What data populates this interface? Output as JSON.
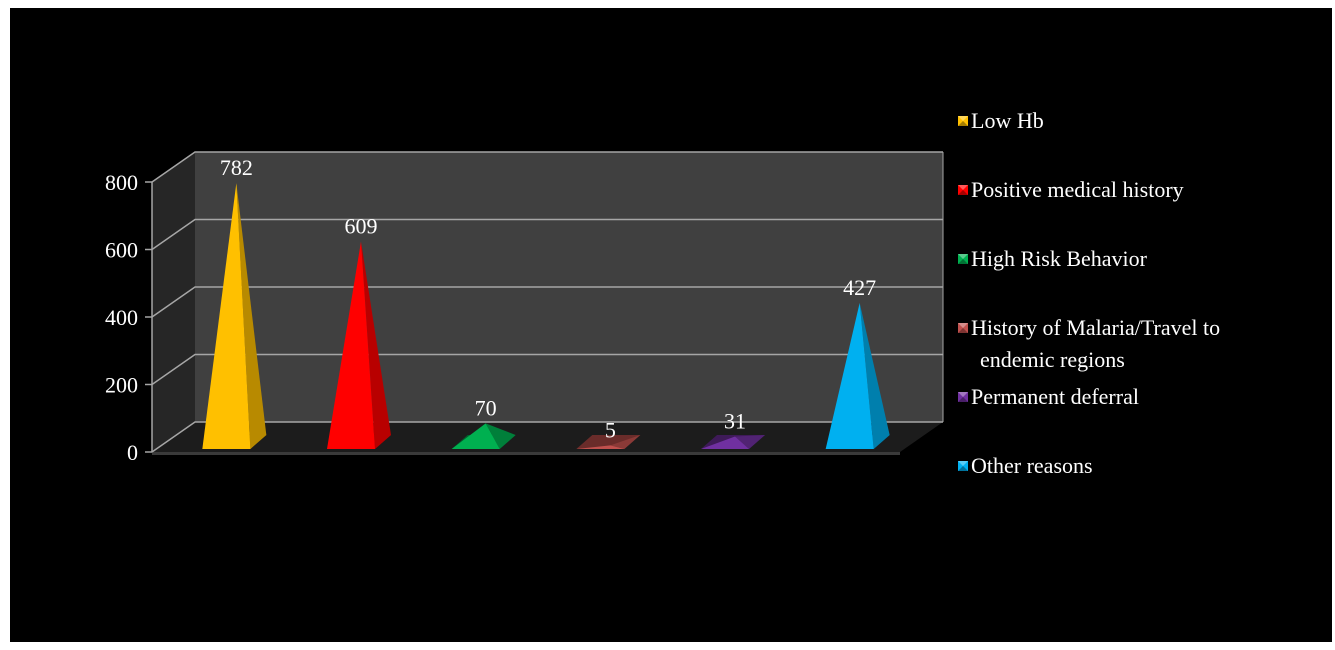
{
  "chart_data": {
    "type": "bar",
    "style": "3d-pyramid",
    "categories": [
      "Low Hb",
      "Positive medical history",
      "High Risk Behavior",
      "History of Malaria/Travel to endemic regions",
      "Permanent deferral",
      "Other reasons"
    ],
    "values": [
      782,
      609,
      70,
      5,
      31,
      427
    ],
    "colors": [
      "#ffc000",
      "#ff0000",
      "#00b050",
      "#c0504d",
      "#7030a0",
      "#00b0f0"
    ],
    "ylim": [
      0,
      800
    ],
    "yticks": [
      0,
      200,
      400,
      600,
      800
    ],
    "grid": true,
    "legend": {
      "position": "right",
      "entries": [
        [
          "Low Hb"
        ],
        [
          "Positive medical history"
        ],
        [
          "High Risk Behavior"
        ],
        [
          "History of Malaria/Travel to",
          "endemic regions"
        ],
        [
          "Permanent deferral"
        ],
        [
          "Other reasons"
        ]
      ]
    },
    "background": "#000000"
  }
}
